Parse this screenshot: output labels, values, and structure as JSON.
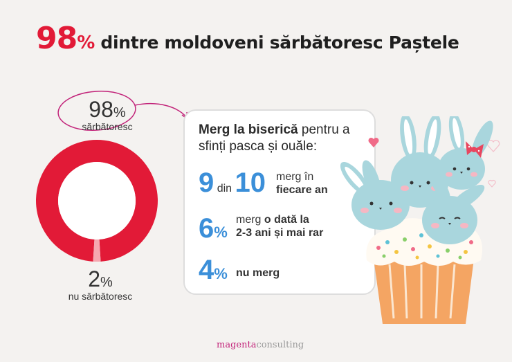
{
  "title": {
    "number": "98",
    "percent": "%",
    "text": "dintre moldoveni sărbătoresc Paștele"
  },
  "chart_data": {
    "type": "pie",
    "categories": [
      "sărbătoresc",
      "nu sărbătoresc"
    ],
    "values": [
      98,
      2
    ],
    "colors": [
      "#e21a37",
      "#f6a7b0"
    ]
  },
  "labels": {
    "celebrate": {
      "value": "98",
      "unit": "%",
      "text": "sărbătoresc"
    },
    "not_celebrate": {
      "value": "2",
      "unit": "%",
      "text": "nu sărbătoresc"
    }
  },
  "card": {
    "heading_bold": "Merg la biserică",
    "heading_rest": " pentru a sfinți pasca și ouăle:",
    "rows": [
      {
        "n1": "9",
        "mid": "din",
        "n2": "10",
        "text1": "merg în",
        "text2": "fiecare an"
      },
      {
        "n": "6",
        "unit": "%",
        "text1": "merg ",
        "text1b": "o dată la",
        "text2": "2-3 ani și mai rar"
      },
      {
        "n": "4",
        "unit": "%",
        "text": "nu merg"
      }
    ]
  },
  "brand": {
    "magenta": "magenta",
    "consulting": "consulting"
  }
}
